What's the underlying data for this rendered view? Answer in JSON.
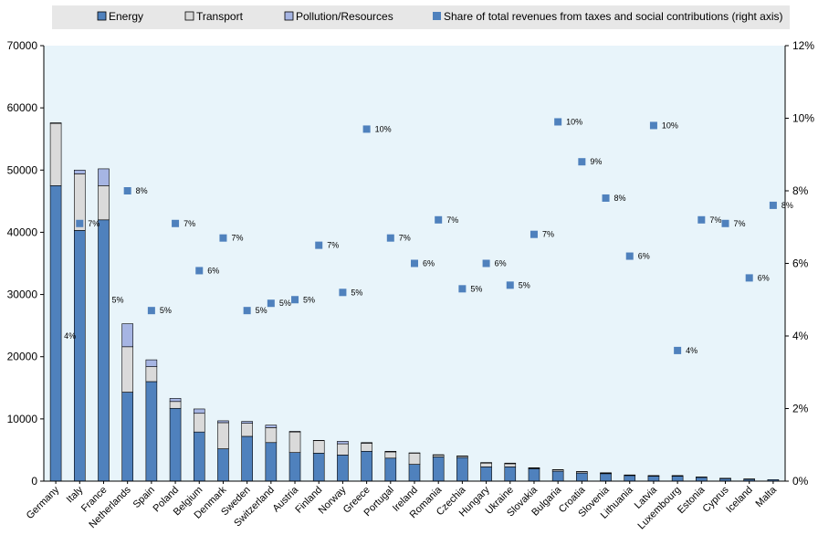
{
  "chart_data": {
    "type": "bar",
    "stacked": true,
    "categories": [
      "Germany",
      "Italy",
      "France",
      "Netherlands",
      "Spain",
      "Poland",
      "Belgium",
      "Denmark",
      "Sweden",
      "Switzerland",
      "Austria",
      "Finland",
      "Norway",
      "Greece",
      "Portugal",
      "Ireland",
      "Romania",
      "Czechia",
      "Hungary",
      "Ukraine",
      "Slovakia",
      "Bulgaria",
      "Croatia",
      "Slovenia",
      "Lithuania",
      "Latvia",
      "Luxembourg",
      "Estonia",
      "Cyprus",
      "Iceland",
      "Malta"
    ],
    "series": [
      {
        "name": "Energy",
        "color": "#4f81bd",
        "values": [
          47500,
          40300,
          42000,
          14300,
          16000,
          11700,
          7900,
          5200,
          7200,
          6200,
          4600,
          4500,
          4200,
          4800,
          3700,
          2700,
          3900,
          3800,
          2300,
          2300,
          2000,
          1600,
          1300,
          1200,
          900,
          800,
          800,
          600,
          400,
          300,
          250
        ]
      },
      {
        "name": "Transport",
        "color": "#dadada",
        "values": [
          10000,
          9100,
          5500,
          7300,
          2400,
          1100,
          3000,
          4200,
          2100,
          2400,
          3300,
          2000,
          1800,
          1300,
          1000,
          1800,
          300,
          200,
          600,
          500,
          100,
          200,
          200,
          100,
          50,
          50,
          50,
          40,
          40,
          30,
          20
        ]
      },
      {
        "name": "Pollution/Resources",
        "color": "#a6b5e3",
        "values": [
          100,
          600,
          2700,
          3700,
          1100,
          500,
          700,
          300,
          300,
          400,
          100,
          50,
          400,
          100,
          100,
          50,
          50,
          50,
          100,
          100,
          50,
          50,
          50,
          50,
          50,
          50,
          50,
          30,
          30,
          30,
          20
        ]
      }
    ],
    "share_series": {
      "name": "Share of total revenues from taxes and social contributions (right axis)",
      "color": "#4f81bd",
      "values": [
        4.0,
        7.1,
        5.0,
        8.0,
        4.7,
        7.1,
        5.8,
        6.7,
        4.7,
        4.9,
        5.0,
        6.5,
        5.2,
        9.7,
        6.7,
        6.0,
        7.2,
        5.3,
        6.0,
        5.4,
        6.8,
        9.9,
        8.8,
        7.8,
        6.2,
        9.8,
        3.6,
        7.2,
        7.1,
        5.6,
        7.6
      ],
      "labels": [
        "4%",
        "7%",
        "5%",
        "8%",
        "5%",
        "7%",
        "6%",
        "7%",
        "5%",
        "5%",
        "5%",
        "7%",
        "5%",
        "10%",
        "7%",
        "6%",
        "7%",
        "5%",
        "6%",
        "5%",
        "7%",
        "10%",
        "9%",
        "8%",
        "6%",
        "10%",
        "4%",
        "7%",
        "7%",
        "6%",
        "8%"
      ]
    },
    "y_left": {
      "min": 0,
      "max": 70000,
      "ticks": [
        "0",
        "10000",
        "20000",
        "30000",
        "40000",
        "50000",
        "60000",
        "70000"
      ]
    },
    "y_right": {
      "min": 0,
      "max": 12,
      "ticks": [
        "0%",
        "2%",
        "4%",
        "6%",
        "8%",
        "10%",
        "12%"
      ]
    },
    "legend_position": "top",
    "plot_background": "#e8f4fa"
  }
}
